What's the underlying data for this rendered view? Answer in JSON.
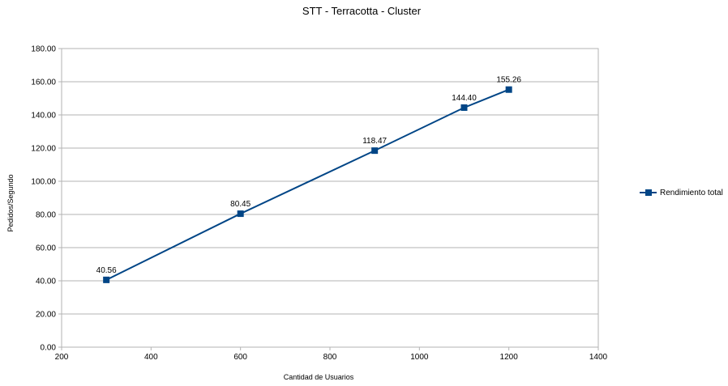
{
  "chart_data": {
    "type": "line",
    "title": "STT - Terracotta - Cluster",
    "xlabel": "Cantidad de Usuarios",
    "ylabel": "Pedidos/Segundo",
    "xlim": [
      200,
      1400
    ],
    "ylim": [
      0,
      180
    ],
    "x_ticks": [
      "200",
      "400",
      "600",
      "800",
      "1000",
      "1200",
      "1400"
    ],
    "y_ticks": [
      "0.00",
      "20.00",
      "40.00",
      "60.00",
      "80.00",
      "100.00",
      "120.00",
      "140.00",
      "160.00",
      "180.00"
    ],
    "grid": true,
    "legend_position": "right",
    "series": [
      {
        "name": "Rendimiento total",
        "color": "#004586",
        "marker": "square",
        "x": [
          300,
          600,
          900,
          1100,
          1200
        ],
        "y": [
          40.56,
          80.45,
          118.47,
          144.4,
          155.26
        ],
        "labels": [
          "40.56",
          "80.45",
          "118.47",
          "144.40",
          "155.26"
        ]
      }
    ]
  }
}
